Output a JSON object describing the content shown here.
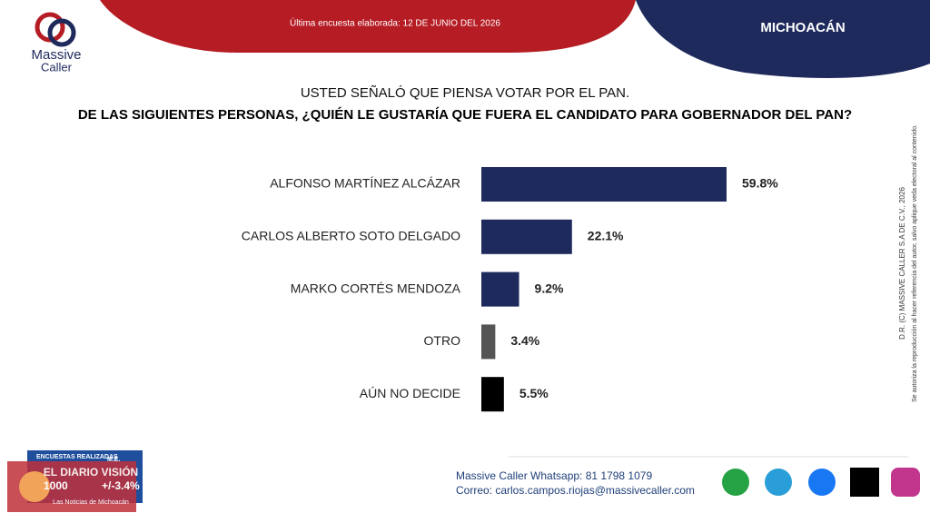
{
  "header": {
    "logo_line1": "Massive",
    "logo_line2": "Caller",
    "survey_date": "Última encuesta elaborada: 12 DE JUNIO DEL 2026",
    "region": "MICHOACÁN"
  },
  "chart_data": {
    "type": "hbar",
    "title": "USTED SEÑALÓ QUE PIENSA VOTAR POR EL PAN.",
    "subtitle": "DE LAS SIGUIENTES PERSONAS, ¿QUIÉN LE GUSTARÍA QUE FUERA EL CANDIDATO PARA GOBERNADOR DEL PAN?",
    "categories": [
      "ALFONSO MARTÍNEZ ALCÁZAR",
      "CARLOS ALBERTO SOTO DELGADO",
      "MARKO CORTÉS MENDOZA",
      "OTRO",
      "AÚN NO DECIDE"
    ],
    "values": [
      59.8,
      22.1,
      9.2,
      3.4,
      5.5
    ],
    "value_labels": [
      "59.8%",
      "22.1%",
      "9.2%",
      "3.4%",
      "5.5%"
    ],
    "colors": [
      "#1f2a5c",
      "#1f2a5c",
      "#1f2a5c",
      "#555555",
      "#000000"
    ]
  },
  "side_note": {
    "line1": "D.R. (C) MASSIVE CALLER S.A DE C.V., 2026",
    "line2": "Se autoriza la reproducción al hacer referencia del autor, salvo aplique veda electoral al contenido."
  },
  "sample_box": {
    "label1": "ENCUESTAS REALIZADAS",
    "label2": "M.E.",
    "count": "1000",
    "margin": "+/-3.4%"
  },
  "watermark": {
    "name": "EL DIARIO VISIÓN",
    "tagline": "Las Noticias de Michoacán"
  },
  "footer": {
    "whatsapp": "Massive Caller Whatsapp: 81 1798 1079",
    "email": "Correo: carlos.campos.riojas@massivecaller.com"
  }
}
